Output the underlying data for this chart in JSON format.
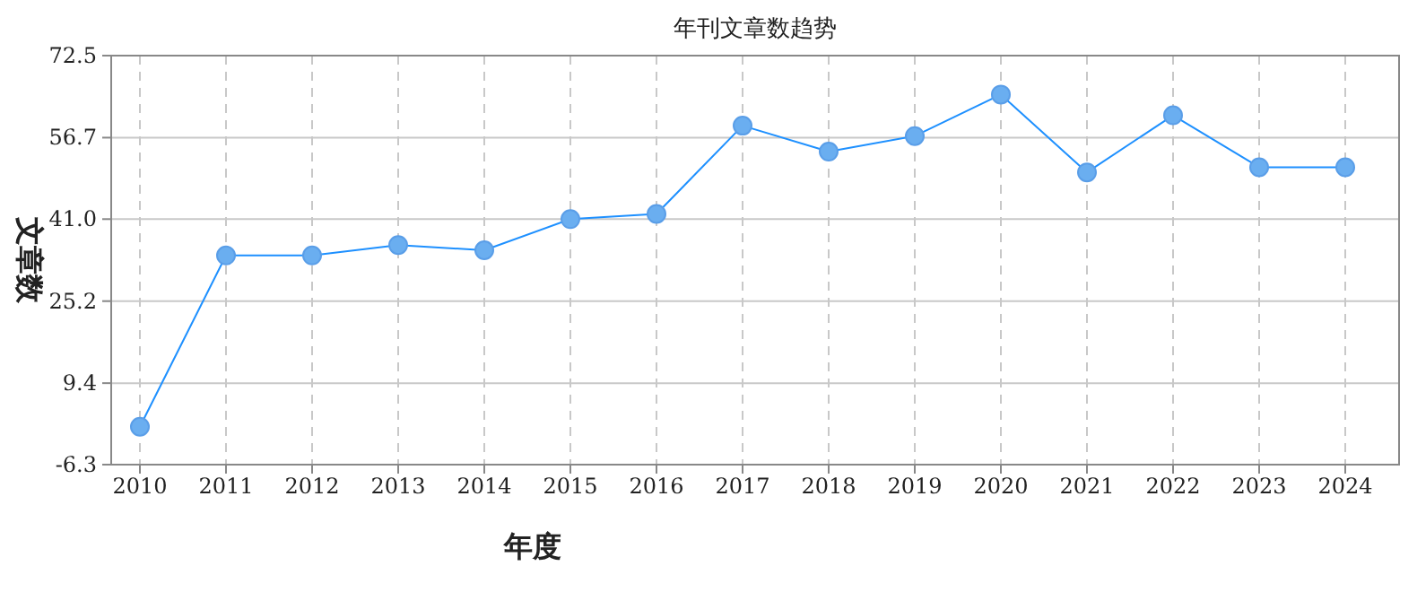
{
  "chart_data": {
    "type": "line",
    "title": "年刊文章数趋势",
    "xlabel": "年度",
    "ylabel": "文章数",
    "categories": [
      "2010",
      "2011",
      "2012",
      "2013",
      "2014",
      "2015",
      "2016",
      "2017",
      "2018",
      "2019",
      "2020",
      "2021",
      "2022",
      "2023",
      "2024"
    ],
    "series": [
      {
        "color": "#1e90ff",
        "values": [
          1,
          34,
          34,
          36,
          35,
          41,
          42,
          59,
          54,
          57,
          65,
          50,
          61,
          51,
          51
        ]
      }
    ],
    "ylim": [
      -6.3,
      72.5
    ],
    "yticks": [
      -6.3,
      9.4,
      25.2,
      {
        "value": 41,
        "label": "41.0"
      },
      56.7,
      72.5
    ],
    "grid": true,
    "marker": "circle",
    "line_style": "solid"
  }
}
